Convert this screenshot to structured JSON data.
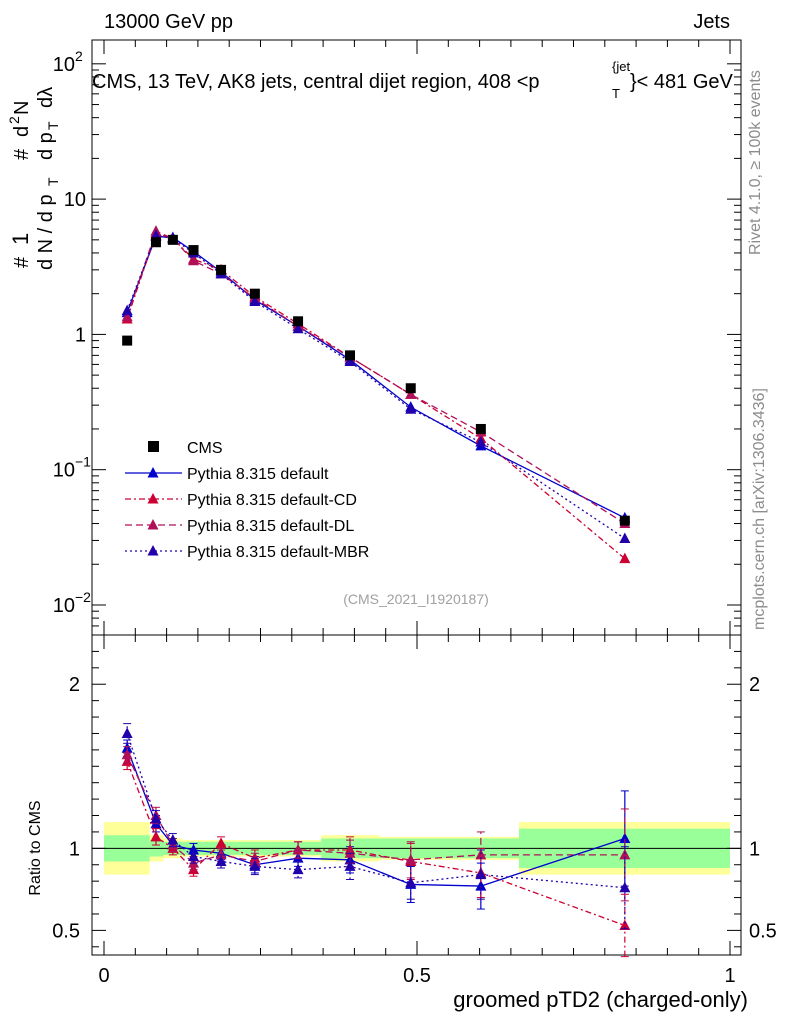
{
  "header": {
    "left": "13000 GeV pp",
    "right": "Jets"
  },
  "side_text": {
    "rivet": "Rivet 4.1.0, ≥ 100k events",
    "mcplots": "mcplots.cern.ch [arXiv:1306.3436]"
  },
  "chart_data": {
    "type": "line",
    "title": "CMS, 13 TeV, AK8 jets, central dijet region, 408 <p",
    "title_sub": "T",
    "title_sup": "{jet",
    "title_tail": "}< 481 GeV",
    "ylabel_main": "1/(dN/dp_T) d²N/(dp_T dλ)",
    "ylabel_ratio": "Ratio to CMS",
    "xlabel": "groomed pTD2 (charged-only)",
    "watermark": "(CMS_2021_I1920187)",
    "xlim": [
      0,
      1
    ],
    "ylim_main": [
      0.006,
      150
    ],
    "ylim_ratio": [
      0.35,
      2.3
    ],
    "yscale_main": "log",
    "x_ticks": [
      "0",
      "0.5",
      "1"
    ],
    "y_ticks_main": [
      {
        "v": 0.01,
        "base": "10",
        "exp": "−2"
      },
      {
        "v": 0.1,
        "base": "10",
        "exp": "−1"
      },
      {
        "v": 1,
        "base": "1",
        "exp": ""
      },
      {
        "v": 10,
        "base": "10",
        "exp": ""
      },
      {
        "v": 100,
        "base": "10",
        "exp": "2"
      }
    ],
    "y_ticks_ratio": [
      "0.5",
      "1",
      "2"
    ],
    "x": [
      0.037,
      0.083,
      0.11,
      0.143,
      0.187,
      0.241,
      0.31,
      0.393,
      0.49,
      0.602,
      0.832
    ],
    "bin_edges": [
      0.0,
      0.073,
      0.095,
      0.125,
      0.16,
      0.215,
      0.267,
      0.347,
      0.44,
      0.54,
      0.663,
      1.0
    ],
    "legend": {
      "position": "bottom-left"
    },
    "data": {
      "name": "CMS",
      "values": [
        0.9,
        4.8,
        5.0,
        4.2,
        3.0,
        2.0,
        1.25,
        0.7,
        0.4,
        0.2,
        0.042
      ],
      "band_inner": [
        0.08,
        0.05,
        0.04,
        0.04,
        0.04,
        0.04,
        0.04,
        0.06,
        0.06,
        0.06,
        0.12
      ],
      "band_outer": [
        0.16,
        0.08,
        0.06,
        0.05,
        0.05,
        0.05,
        0.05,
        0.08,
        0.07,
        0.07,
        0.16
      ]
    },
    "series": [
      {
        "name": "Pythia 8.315 default",
        "color": "#0000cc",
        "dash": "",
        "values": [
          1.45,
          5.3,
          5.2,
          4.1,
          2.9,
          1.8,
          1.15,
          0.65,
          0.29,
          0.15,
          0.044
        ],
        "ratio": [
          1.61,
          1.15,
          1.02,
          0.99,
          0.97,
          0.9,
          0.94,
          0.93,
          0.78,
          0.77,
          1.06
        ],
        "ratio_err": [
          0.05,
          0.05,
          0.04,
          0.04,
          0.04,
          0.05,
          0.05,
          0.08,
          0.11,
          0.14,
          0.29
        ]
      },
      {
        "name": "Pythia 8.315 default-CD",
        "color": "#cc0033",
        "dash": "6,3,2,3",
        "values": [
          1.3,
          5.6,
          5.1,
          3.6,
          3.0,
          1.9,
          1.2,
          0.68,
          0.36,
          0.17,
          0.022
        ],
        "ratio": [
          1.53,
          1.07,
          1.0,
          0.87,
          1.03,
          0.94,
          0.99,
          0.99,
          0.92,
          0.85,
          0.53
        ],
        "ratio_err": [
          0.05,
          0.05,
          0.04,
          0.04,
          0.04,
          0.05,
          0.05,
          0.08,
          0.11,
          0.15,
          0.19
        ]
      },
      {
        "name": "Pythia 8.315 default-DL",
        "color": "#b0105a",
        "dash": "7,4",
        "values": [
          1.35,
          5.8,
          5.1,
          3.5,
          2.8,
          1.85,
          1.15,
          0.68,
          0.36,
          0.19,
          0.04
        ],
        "ratio": [
          1.57,
          1.2,
          1.02,
          0.91,
          0.96,
          0.92,
          0.99,
          0.97,
          0.93,
          0.96,
          0.96
        ],
        "ratio_err": [
          0.05,
          0.05,
          0.04,
          0.04,
          0.04,
          0.05,
          0.05,
          0.08,
          0.11,
          0.14,
          0.28
        ]
      },
      {
        "name": "Pythia 8.315 default-MBR",
        "color": "#2200aa",
        "dash": "2,3",
        "values": [
          1.5,
          5.4,
          5.1,
          4.0,
          2.8,
          1.75,
          1.1,
          0.63,
          0.28,
          0.16,
          0.031
        ],
        "ratio": [
          1.7,
          1.18,
          1.05,
          0.95,
          0.92,
          0.89,
          0.87,
          0.89,
          0.79,
          0.84,
          0.76
        ],
        "ratio_err": [
          0.06,
          0.05,
          0.04,
          0.04,
          0.04,
          0.05,
          0.05,
          0.08,
          0.1,
          0.15,
          0.25
        ]
      }
    ]
  }
}
